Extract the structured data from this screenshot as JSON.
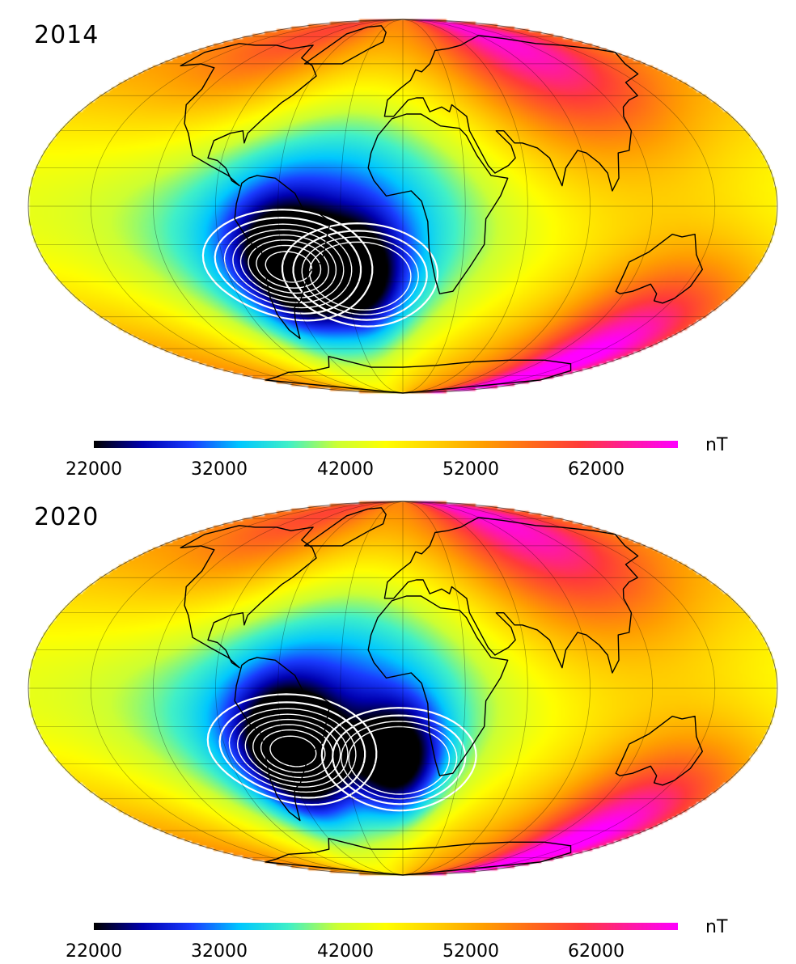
{
  "panels": [
    {
      "year": "2014",
      "anomaly": {
        "centers": [
          [
            -58,
            -24
          ],
          [
            -22,
            -28
          ]
        ],
        "depth": 1.0
      }
    },
    {
      "year": "2020",
      "anomaly": {
        "centers": [
          [
            -56,
            -25
          ],
          [
            -2,
            -29
          ]
        ],
        "depth": 1.15
      }
    }
  ],
  "colorbar": {
    "unit": "nT",
    "min": 22000,
    "max": 68500,
    "ticks": [
      "22000",
      "32000",
      "42000",
      "52000",
      "62000"
    ],
    "colors": [
      "#000000",
      "#0000b0",
      "#1a3cff",
      "#00c8ff",
      "#40f0c8",
      "#ccff33",
      "#ffff00",
      "#ffd000",
      "#ff9f00",
      "#ff6a1a",
      "#ff3a3a",
      "#ff1aa0",
      "#ff00ff"
    ]
  }
}
